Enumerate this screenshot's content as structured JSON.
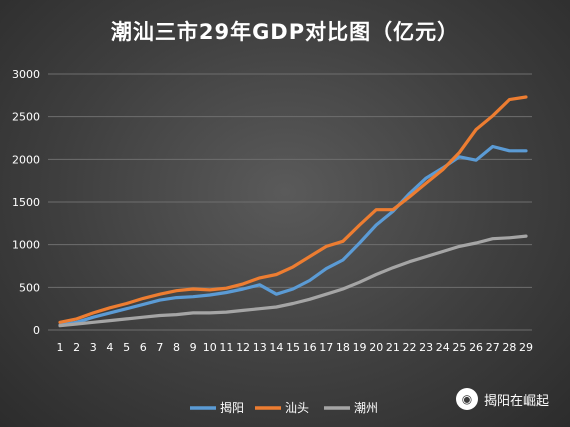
{
  "chart_data": {
    "type": "line",
    "title": "潮汕三市29年GDP对比图（亿元）",
    "xlabel": "",
    "ylabel": "",
    "x": [
      1,
      2,
      3,
      4,
      5,
      6,
      7,
      8,
      9,
      10,
      11,
      12,
      13,
      14,
      15,
      16,
      17,
      18,
      19,
      20,
      21,
      22,
      23,
      24,
      25,
      26,
      27,
      28,
      29
    ],
    "ylim": [
      0,
      3000
    ],
    "yticks": [
      "0",
      "500",
      "1000",
      "1500",
      "2000",
      "2500",
      "3000"
    ],
    "grid": true,
    "legend_position": "bottom",
    "series": [
      {
        "name": "揭阳",
        "color": "#5b9bd5",
        "values": [
          60,
          90,
          150,
          200,
          250,
          300,
          350,
          380,
          390,
          410,
          440,
          480,
          530,
          420,
          480,
          580,
          720,
          820,
          1020,
          1230,
          1390,
          1600,
          1780,
          1900,
          2030,
          1990,
          2150,
          2100,
          2100
        ]
      },
      {
        "name": "汕头",
        "color": "#ed7d31",
        "values": [
          90,
          130,
          200,
          260,
          310,
          370,
          420,
          460,
          480,
          470,
          490,
          540,
          610,
          650,
          740,
          860,
          980,
          1040,
          1230,
          1410,
          1410,
          1560,
          1720,
          1880,
          2080,
          2350,
          2510,
          2700,
          2730
        ]
      },
      {
        "name": "潮州",
        "color": "#a5a5a5",
        "values": [
          50,
          70,
          90,
          110,
          130,
          150,
          170,
          180,
          200,
          200,
          210,
          230,
          250,
          270,
          310,
          360,
          420,
          480,
          560,
          650,
          730,
          800,
          860,
          920,
          980,
          1020,
          1070,
          1080,
          1100
        ]
      }
    ]
  },
  "watermark": {
    "text": "揭阳在崛起",
    "icon": "wechat-icon"
  }
}
